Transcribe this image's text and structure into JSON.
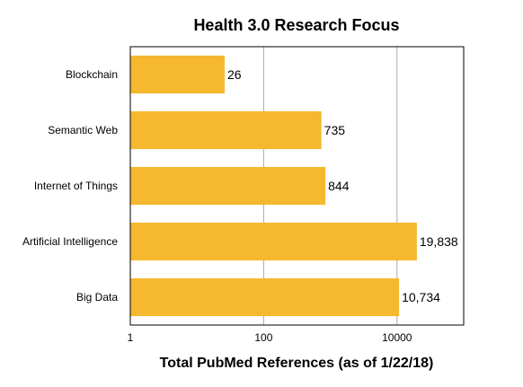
{
  "chart_data": {
    "type": "bar",
    "orientation": "horizontal",
    "title": "Health 3.0 Research Focus",
    "xlabel": "Total PubMed References (as of 1/22/18)",
    "ylabel": "",
    "x_scale": "log",
    "xlim": [
      1,
      100000
    ],
    "x_ticks": [
      1,
      100,
      10000
    ],
    "x_tick_labels": [
      "1",
      "100",
      "10000"
    ],
    "grid": "vertical-major",
    "legend": "none",
    "categories": [
      "Blockchain",
      "Semantic Web",
      "Internet of Things",
      "Artificial Intelligence",
      "Big Data"
    ],
    "values": [
      26,
      735,
      844,
      19838,
      10734
    ],
    "value_labels": [
      "26",
      "735",
      "844",
      "19,838",
      "10,734"
    ],
    "bar_color": "#F5B82E",
    "grid_color": "#AAAAAA"
  }
}
